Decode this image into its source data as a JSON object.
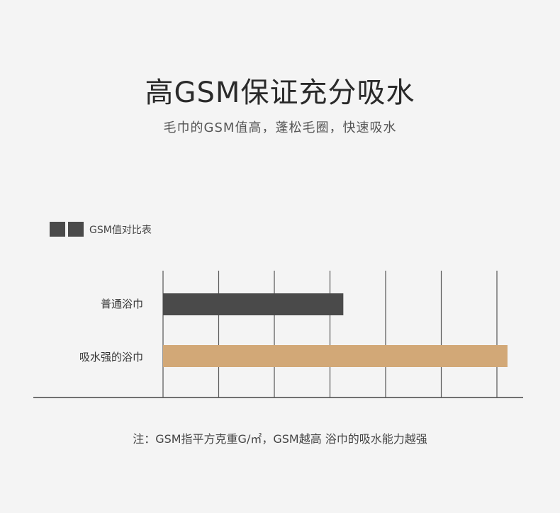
{
  "header": {
    "title": "高GSM保证充分吸水",
    "subtitle": "毛巾的GSM值高，蓬松毛圈，快速吸水"
  },
  "chart_data": {
    "type": "bar",
    "orientation": "horizontal",
    "legend": "GSM值对比表",
    "legend_placement": "top-left",
    "categories": [
      "普通浴巾",
      "吸水强的浴巾"
    ],
    "values": [
      3.24,
      6.19
    ],
    "colors": [
      "#4a4a4a",
      "#d2a877"
    ],
    "xlim": [
      0,
      6
    ],
    "grid": true,
    "gridlines": 7
  },
  "footer": {
    "note": "注：GSM指平方克重G/㎡，GSM越高 浴巾的吸水能力越强"
  }
}
